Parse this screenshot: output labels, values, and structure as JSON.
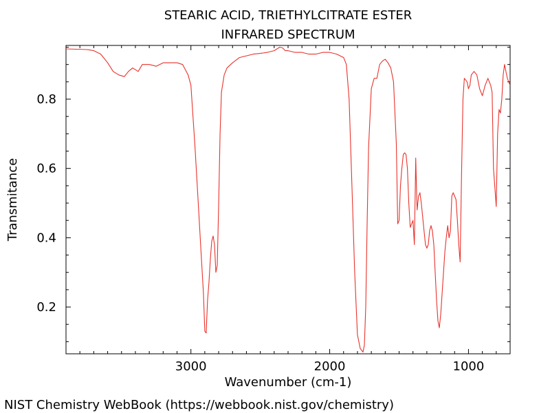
{
  "chart_data": {
    "type": "line",
    "title": "STEARIC ACID, TRIETHYLCITRATE ESTER",
    "subtitle": "INFRARED SPECTRUM",
    "xlabel": "Wavenumber (cm-1)",
    "ylabel": "Transmitance",
    "xlim": [
      3900,
      700
    ],
    "ylim": [
      0.065,
      0.955
    ],
    "x_ticks": [
      3000,
      2000,
      1000
    ],
    "x_tick_labels": [
      "3000",
      "2000",
      "1000"
    ],
    "y_ticks": [
      0.2,
      0.4,
      0.6,
      0.8
    ],
    "y_tick_labels": [
      "0.2",
      "0.4",
      "0.6",
      "0.8"
    ],
    "x_reversed": true,
    "grid": false,
    "series": [
      {
        "color": "#e8312a",
        "x": [
          3900,
          3750,
          3700,
          3650,
          3600,
          3560,
          3520,
          3480,
          3450,
          3420,
          3380,
          3350,
          3300,
          3250,
          3200,
          3150,
          3100,
          3060,
          3040,
          3020,
          3000,
          2990,
          2970,
          2950,
          2930,
          2910,
          2900,
          2890,
          2880,
          2870,
          2860,
          2850,
          2840,
          2830,
          2820,
          2810,
          2800,
          2790,
          2780,
          2760,
          2740,
          2700,
          2650,
          2600,
          2550,
          2500,
          2450,
          2400,
          2360,
          2340,
          2320,
          2300,
          2250,
          2200,
          2150,
          2100,
          2050,
          2000,
          1950,
          1900,
          1880,
          1860,
          1840,
          1820,
          1800,
          1780,
          1760,
          1750,
          1740,
          1730,
          1720,
          1700,
          1680,
          1660,
          1640,
          1620,
          1600,
          1580,
          1560,
          1540,
          1520,
          1510,
          1500,
          1490,
          1480,
          1470,
          1460,
          1450,
          1440,
          1430,
          1420,
          1400,
          1390,
          1385,
          1380,
          1375,
          1370,
          1360,
          1350,
          1340,
          1330,
          1320,
          1310,
          1300,
          1290,
          1280,
          1270,
          1260,
          1250,
          1240,
          1230,
          1220,
          1210,
          1200,
          1190,
          1180,
          1170,
          1160,
          1150,
          1140,
          1130,
          1120,
          1110,
          1100,
          1090,
          1080,
          1070,
          1060,
          1050,
          1040,
          1030,
          1020,
          1010,
          1000,
          990,
          980,
          960,
          940,
          920,
          900,
          880,
          860,
          850,
          840,
          830,
          820,
          800,
          790,
          780,
          770,
          760,
          750,
          740,
          730,
          720,
          710,
          700
        ],
        "y": [
          0.945,
          0.943,
          0.94,
          0.93,
          0.905,
          0.88,
          0.87,
          0.865,
          0.88,
          0.89,
          0.88,
          0.9,
          0.9,
          0.895,
          0.905,
          0.905,
          0.905,
          0.9,
          0.885,
          0.87,
          0.84,
          0.78,
          0.66,
          0.52,
          0.38,
          0.24,
          0.13,
          0.125,
          0.22,
          0.27,
          0.34,
          0.39,
          0.405,
          0.38,
          0.3,
          0.32,
          0.5,
          0.7,
          0.82,
          0.87,
          0.89,
          0.905,
          0.92,
          0.925,
          0.93,
          0.932,
          0.935,
          0.94,
          0.95,
          0.948,
          0.94,
          0.94,
          0.935,
          0.935,
          0.93,
          0.93,
          0.935,
          0.935,
          0.93,
          0.92,
          0.9,
          0.8,
          0.55,
          0.3,
          0.12,
          0.08,
          0.07,
          0.09,
          0.2,
          0.45,
          0.66,
          0.83,
          0.86,
          0.86,
          0.9,
          0.91,
          0.915,
          0.905,
          0.89,
          0.85,
          0.67,
          0.44,
          0.45,
          0.55,
          0.6,
          0.64,
          0.645,
          0.64,
          0.6,
          0.5,
          0.43,
          0.45,
          0.38,
          0.5,
          0.63,
          0.55,
          0.48,
          0.52,
          0.53,
          0.5,
          0.46,
          0.42,
          0.38,
          0.37,
          0.38,
          0.42,
          0.435,
          0.42,
          0.38,
          0.3,
          0.22,
          0.16,
          0.14,
          0.18,
          0.24,
          0.3,
          0.36,
          0.4,
          0.435,
          0.4,
          0.42,
          0.52,
          0.53,
          0.52,
          0.51,
          0.45,
          0.38,
          0.33,
          0.58,
          0.8,
          0.86,
          0.855,
          0.85,
          0.83,
          0.84,
          0.87,
          0.88,
          0.87,
          0.83,
          0.81,
          0.84,
          0.86,
          0.85,
          0.84,
          0.82,
          0.6,
          0.49,
          0.7,
          0.77,
          0.76,
          0.8,
          0.87,
          0.9,
          0.88,
          0.86,
          0.85,
          0.84
        ]
      }
    ]
  },
  "footer": "NIST Chemistry WebBook (https://webbook.nist.gov/chemistry)"
}
